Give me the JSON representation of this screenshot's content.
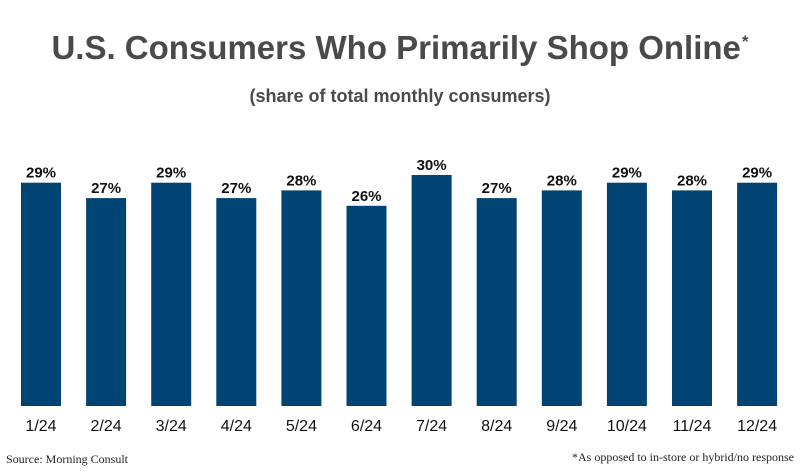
{
  "colors": {
    "bar": "#004474",
    "title": "#4a4a4a",
    "label": "#111111"
  },
  "title": "U.S. Consumers Who Primarily Shop Online",
  "title_marker": "*",
  "subtitle": "(share of total monthly consumers)",
  "source": "Source: Morning Consult",
  "footnote": "*As opposed to in-store or hybrid/no response",
  "chart_data": {
    "type": "bar",
    "title": "U.S. Consumers Who Primarily Shop Online",
    "subtitle": "(share of total monthly consumers)",
    "categories": [
      "1/24",
      "2/24",
      "3/24",
      "4/24",
      "5/24",
      "6/24",
      "7/24",
      "8/24",
      "9/24",
      "10/24",
      "11/24",
      "12/24"
    ],
    "values": [
      29,
      27,
      29,
      27,
      28,
      26,
      30,
      27,
      28,
      29,
      28,
      29
    ],
    "value_labels": [
      "29%",
      "27%",
      "29%",
      "27%",
      "28%",
      "26%",
      "30%",
      "27%",
      "28%",
      "29%",
      "28%",
      "29%"
    ],
    "unit": "%",
    "ylim": [
      0,
      30
    ],
    "grid": false,
    "legend": "none"
  }
}
